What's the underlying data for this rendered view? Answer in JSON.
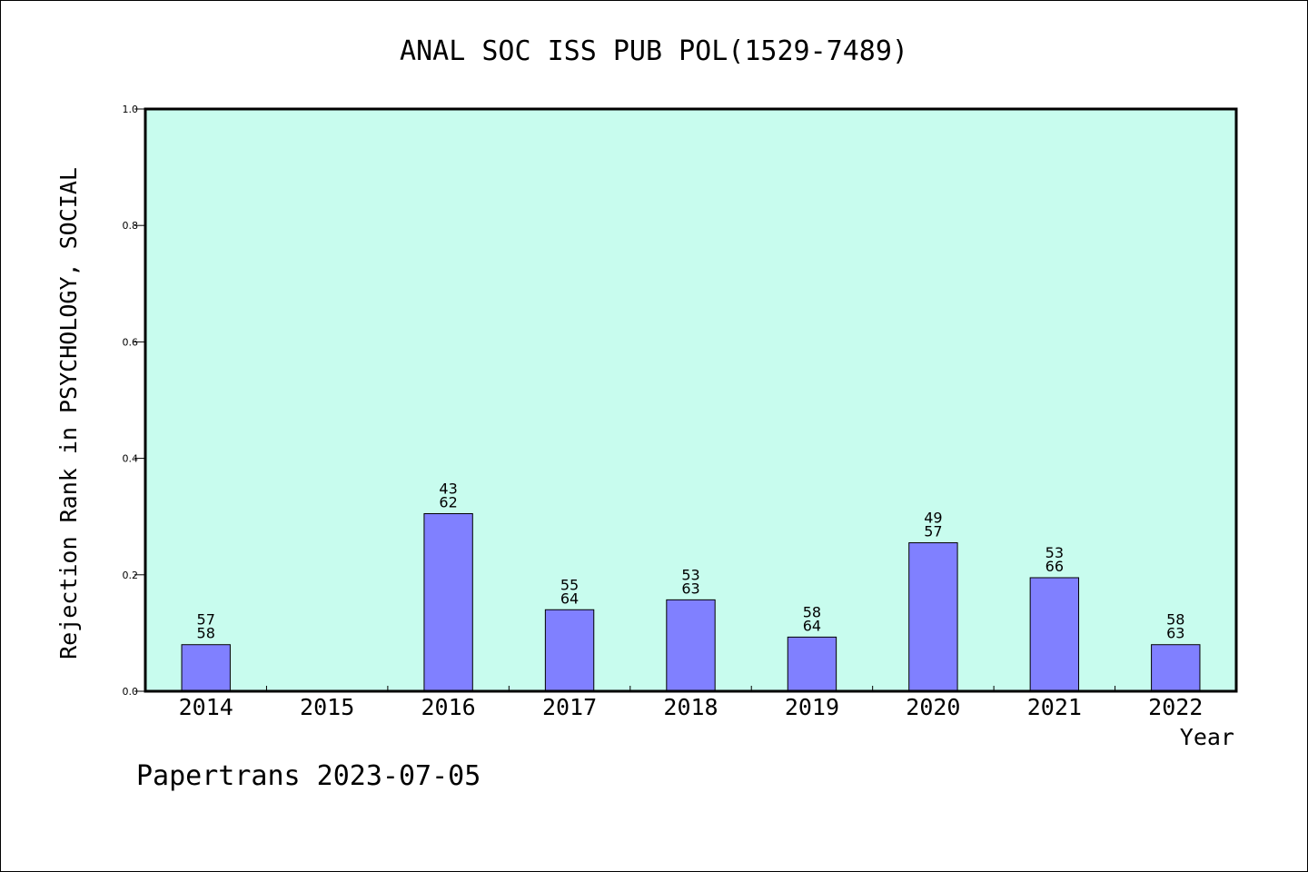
{
  "chart_data": {
    "type": "bar",
    "title": "ANAL SOC ISS PUB POL(1529-7489)",
    "xlabel": "Year",
    "ylabel": "Rejection Rank in PSYCHOLOGY, SOCIAL",
    "ylim": [
      0,
      1.0
    ],
    "yticks": [
      "0.0",
      "0.2",
      "0.4",
      "0.6",
      "0.8",
      "1.0"
    ],
    "categories": [
      "2014",
      "2015",
      "2016",
      "2017",
      "2018",
      "2019",
      "2020",
      "2021",
      "2022"
    ],
    "values": [
      0.08,
      null,
      0.305,
      0.14,
      0.157,
      0.093,
      0.255,
      0.195,
      0.08
    ],
    "labels_top": [
      "57",
      "",
      "43",
      "55",
      "53",
      "58",
      "49",
      "53",
      "58"
    ],
    "labels_bottom": [
      "58",
      "",
      "62",
      "64",
      "63",
      "64",
      "57",
      "66",
      "63"
    ],
    "grid": false,
    "colors": {
      "plot_bg": "#c8fcee",
      "bar": "#8080ff"
    }
  },
  "footer": "Papertrans 2023-07-05"
}
